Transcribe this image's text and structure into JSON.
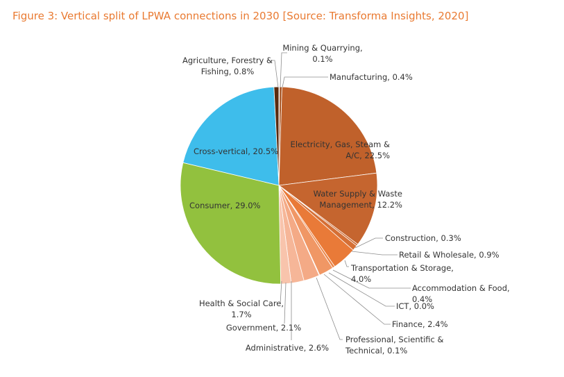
{
  "title": "Figure 3: Vertical split of LPWA connections in 2030 [Source: Transforma Insights, 2020]",
  "chart_data": {
    "type": "pie",
    "slices": [
      {
        "label": [
          "Mining & Quarrying,",
          "0.1%"
        ],
        "category": "Mining & Quarrying",
        "value": 0.1,
        "color": "#843C0C"
      },
      {
        "label": [
          "Manufacturing, 0.4%"
        ],
        "category": "Manufacturing",
        "value": 0.4,
        "color": "#A4501E"
      },
      {
        "label": [
          "Electricity, Gas, Steam &",
          "A/C, 22.5%"
        ],
        "category": "Electricity, Gas, Steam & A/C",
        "value": 22.5,
        "color": "#C0612B"
      },
      {
        "label": [
          "Water Supply & Waste",
          "Management, 12.2%"
        ],
        "category": "Water Supply & Waste Management",
        "value": 12.2,
        "color": "#C5652F"
      },
      {
        "label": [
          "Construction, 0.3%"
        ],
        "category": "Construction",
        "value": 0.3,
        "color": "#CC6A32"
      },
      {
        "label": [
          "Retail & Wholesale, 0.9%"
        ],
        "category": "Retail & Wholesale",
        "value": 0.9,
        "color": "#D56F35"
      },
      {
        "label": [
          "Transportation & Storage,",
          "4.0%"
        ],
        "category": "Transportation & Storage",
        "value": 4.0,
        "color": "#E97A38"
      },
      {
        "label": [
          "Accommodation & Food,",
          "0.4%"
        ],
        "category": "Accommodation & Food",
        "value": 0.4,
        "color": "#EC8548"
      },
      {
        "label": [
          "ICT, 0.0%"
        ],
        "category": "ICT",
        "value": 0.0,
        "color": "#EE8E56"
      },
      {
        "label": [
          "Finance, 2.4%"
        ],
        "category": "Finance",
        "value": 2.4,
        "color": "#F09765"
      },
      {
        "label": [
          "Professional, Scientific &",
          "Technical, 0.1%"
        ],
        "category": "Professional, Scientific & Technical",
        "value": 0.1,
        "color": "#F2A076"
      },
      {
        "label": [
          "Administrative, 2.6%"
        ],
        "category": "Administrative",
        "value": 2.6,
        "color": "#F4AA86"
      },
      {
        "label": [
          "Government, 2.1%"
        ],
        "category": "Government",
        "value": 2.1,
        "color": "#F6B698"
      },
      {
        "label": [
          "Health & Social Care,",
          "1.7%"
        ],
        "category": "Health & Social Care",
        "value": 1.7,
        "color": "#F8C4AC"
      },
      {
        "label": [
          "Consumer, 29.0%"
        ],
        "category": "Consumer",
        "value": 29.0,
        "color": "#92C13E"
      },
      {
        "label": [
          "Cross-vertical, 20.5%"
        ],
        "category": "Cross-vertical",
        "value": 20.5,
        "color": "#3EBDEB"
      },
      {
        "label": [
          "Agriculture, Forestry &",
          "Fishing, 0.8%"
        ],
        "category": "Agriculture, Forestry & Fishing",
        "value": 0.8,
        "color": "#5A2A0E"
      }
    ]
  }
}
